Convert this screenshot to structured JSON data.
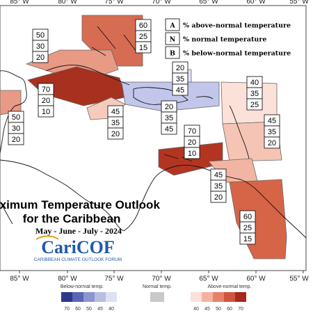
{
  "map": {
    "title": "Maximum Temperature Outlook",
    "subtitle": "for the Caribbean",
    "season": "May - June - July - 2024",
    "logo_text": "CariCOF",
    "logo_caption": "CARIBBEAN CLIMATE OUTLOOK FORUM",
    "longitude_labels": [
      "85° W",
      "80° W",
      "75° W",
      "70° W",
      "65° W",
      "60° W",
      "55° W"
    ]
  },
  "key": [
    {
      "letter": "A",
      "text": "% above-normal temperature"
    },
    {
      "letter": "N",
      "text": "% normal temperature"
    },
    {
      "letter": "B",
      "text": "% below-normal temperature"
    }
  ],
  "regions": [
    {
      "name": "bahamas",
      "values": [
        "60",
        "25",
        "15"
      ]
    },
    {
      "name": "western-cuba",
      "values": [
        "50",
        "30",
        "20"
      ]
    },
    {
      "name": "eastern-cuba",
      "values": [
        "70",
        "20",
        "10"
      ]
    },
    {
      "name": "belize-yucatan",
      "values": [
        "50",
        "30",
        "20"
      ]
    },
    {
      "name": "jamaica",
      "values": [
        "45",
        "35",
        "20"
      ]
    },
    {
      "name": "hispaniola",
      "values": [
        "20",
        "35",
        "45"
      ]
    },
    {
      "name": "turks-caicos",
      "values": [
        "20",
        "35",
        "45"
      ]
    },
    {
      "name": "leeward-islands",
      "values": [
        "40",
        "35",
        "25"
      ]
    },
    {
      "name": "windward-islands",
      "values": [
        "45",
        "35",
        "20"
      ]
    },
    {
      "name": "aruba-curacao",
      "values": [
        "70",
        "20",
        "10"
      ]
    },
    {
      "name": "trinidad-tobago",
      "values": [
        "45",
        "35",
        "20"
      ]
    },
    {
      "name": "guianas",
      "values": [
        "60",
        "25",
        "15"
      ]
    }
  ],
  "scale": {
    "below_label": "Below-normal temp.",
    "normal_label": "Normal temp.",
    "above_label": "Above-normal temp.",
    "below_ticks": [
      "70",
      "60",
      "50",
      "45",
      "40"
    ],
    "above_ticks": [
      "40",
      "45",
      "50",
      "60",
      "70"
    ],
    "colors": {
      "below": [
        "#2b3a8a",
        "#5a66b4",
        "#8c95cf",
        "#b9bee3",
        "#dfe1f3"
      ],
      "normal": "#c9c9c9",
      "above": [
        "#fbe1d8",
        "#f4b3a0",
        "#e5826a",
        "#cf553f",
        "#a8281c"
      ]
    }
  }
}
